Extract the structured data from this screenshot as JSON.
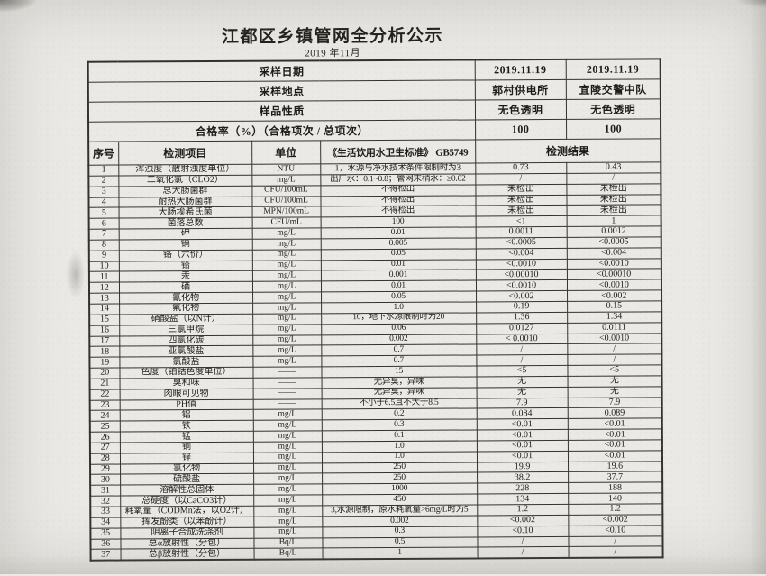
{
  "page": {
    "title": "江都区乡镇管网全分析公示",
    "subtitle": "2019 年11月"
  },
  "info_rows": [
    {
      "label": "采样日期",
      "col1": "2019.11.19",
      "col2": "2019.11.19"
    },
    {
      "label": "采样地点",
      "col1": "郭村供电所",
      "col2": "宜陵交警中队"
    },
    {
      "label": "样品性质",
      "col1": "无色透明",
      "col2": "无色透明"
    },
    {
      "label": "合格率（%）（合格项次 / 总项次）",
      "col1": "100",
      "col2": "100"
    }
  ],
  "table": {
    "headers": {
      "no": "序号",
      "item": "检测项目",
      "unit": "单位",
      "standard": "《生活饮用水卫生标准》 GB5749",
      "result": "检测结果"
    },
    "rows": [
      {
        "no": "1",
        "item": "浑浊度（散射浊度单位）",
        "unit": "NTU",
        "standard": "1，水源与净水技术条件限制时为3",
        "r1": "0.73",
        "r2": "0.43"
      },
      {
        "no": "2",
        "item": "二氧化氯（CLO2）",
        "unit": "mg/L",
        "standard": "出厂水：0.1~0.8；管网末稍水：≥0.02",
        "r1": "/",
        "r2": "/"
      },
      {
        "no": "3",
        "item": "总大肠菌群",
        "unit": "CFU/100mL",
        "standard": "不得检出",
        "r1": "未检出",
        "r2": "未检出"
      },
      {
        "no": "4",
        "item": "耐热大肠菌群",
        "unit": "CFU/100mL",
        "standard": "不得检出",
        "r1": "未检出",
        "r2": "未检出"
      },
      {
        "no": "5",
        "item": "大肠埃希氏菌",
        "unit": "MPN/100mL",
        "standard": "不得检出",
        "r1": "未检出",
        "r2": "未检出"
      },
      {
        "no": "6",
        "item": "菌落总数",
        "unit": "CFU/mL",
        "standard": "100",
        "r1": "<1",
        "r2": "1"
      },
      {
        "no": "7",
        "item": "砷",
        "unit": "mg/L",
        "standard": "0.01",
        "r1": "0.0011",
        "r2": "0.0012"
      },
      {
        "no": "8",
        "item": "镉",
        "unit": "mg/L",
        "standard": "0.005",
        "r1": "<0.0005",
        "r2": "<0.0005"
      },
      {
        "no": "9",
        "item": "铬（六价）",
        "unit": "mg/L",
        "standard": "0.05",
        "r1": "<0.004",
        "r2": "<0.004"
      },
      {
        "no": "10",
        "item": "铅",
        "unit": "mg/L",
        "standard": "0.01",
        "r1": "<0.0010",
        "r2": "<0.0010"
      },
      {
        "no": "11",
        "item": "汞",
        "unit": "mg/L",
        "standard": "0.001",
        "r1": "<0.00010",
        "r2": "<0.00010"
      },
      {
        "no": "12",
        "item": "硒",
        "unit": "mg/L",
        "standard": "0.01",
        "r1": "<0.0010",
        "r2": "<0.0010"
      },
      {
        "no": "13",
        "item": "氰化物",
        "unit": "mg/L",
        "standard": "0.05",
        "r1": "<0.002",
        "r2": "<0.002"
      },
      {
        "no": "14",
        "item": "氟化物",
        "unit": "mg/L",
        "standard": "1.0",
        "r1": "0.19",
        "r2": "0.15"
      },
      {
        "no": "15",
        "item": "硝酸盐（以N计）",
        "unit": "mg/L",
        "standard": "10，地下水源限制时为20",
        "r1": "1.36",
        "r2": "1.34"
      },
      {
        "no": "16",
        "item": "三氯甲烷",
        "unit": "mg/L",
        "standard": "0.06",
        "r1": "0.0127",
        "r2": "0.0111"
      },
      {
        "no": "17",
        "item": "四氯化碳",
        "unit": "mg/L",
        "standard": "0.002",
        "r1": "< 0.0010",
        "r2": "<0.0010"
      },
      {
        "no": "18",
        "item": "亚氯酸盐",
        "unit": "mg/L",
        "standard": "0.7",
        "r1": "/",
        "r2": "/"
      },
      {
        "no": "19",
        "item": "氯酸盐",
        "unit": "mg/L",
        "standard": "0.7",
        "r1": "/",
        "r2": "/"
      },
      {
        "no": "20",
        "item": "色度（铂钴色度单位）",
        "unit": "——",
        "standard": "15",
        "r1": "<5",
        "r2": "<5"
      },
      {
        "no": "21",
        "item": "臭和味",
        "unit": "——",
        "standard": "无异臭，异味",
        "r1": "无",
        "r2": "无"
      },
      {
        "no": "22",
        "item": "肉眼可见物",
        "unit": "——",
        "standard": "无异臭，异味",
        "r1": "无",
        "r2": "无"
      },
      {
        "no": "23",
        "item": "PH值",
        "unit": "——",
        "standard": "不小于6.5且不大于8.5",
        "r1": "7.9",
        "r2": "7.9"
      },
      {
        "no": "24",
        "item": "铝",
        "unit": "mg/L",
        "standard": "0.2",
        "r1": "0.084",
        "r2": "0.089"
      },
      {
        "no": "25",
        "item": "铁",
        "unit": "mg/L",
        "standard": "0.3",
        "r1": "<0.01",
        "r2": "<0.01"
      },
      {
        "no": "26",
        "item": "锰",
        "unit": "mg/L",
        "standard": "0.1",
        "r1": "<0.01",
        "r2": "<0.01"
      },
      {
        "no": "27",
        "item": "铜",
        "unit": "mg/L",
        "standard": "1.0",
        "r1": "<0.01",
        "r2": "<0.01"
      },
      {
        "no": "28",
        "item": "锌",
        "unit": "mg/L",
        "standard": "1.0",
        "r1": "<0.01",
        "r2": "<0.01"
      },
      {
        "no": "29",
        "item": "氯化物",
        "unit": "mg/L",
        "standard": "250",
        "r1": "19.9",
        "r2": "19.6"
      },
      {
        "no": "30",
        "item": "硫酸盐",
        "unit": "mg/L",
        "standard": "250",
        "r1": "38.2",
        "r2": "37.7"
      },
      {
        "no": "31",
        "item": "溶解性总固体",
        "unit": "mg/L",
        "standard": "1000",
        "r1": "228",
        "r2": "188"
      },
      {
        "no": "32",
        "item": "总硬度（以CaCO3计）",
        "unit": "mg/L",
        "standard": "450",
        "r1": "134",
        "r2": "140"
      },
      {
        "no": "33",
        "item": "耗氧量（CODMn法，以O2计）",
        "unit": "mg/L",
        "standard": "3,水源限制，原水耗氧量>6mg/L时为5",
        "r1": "1.2",
        "r2": "1.2"
      },
      {
        "no": "34",
        "item": "挥发酚类（以苯酚计）",
        "unit": "mg/L",
        "standard": "0.002",
        "r1": "<0.002",
        "r2": "<0.002"
      },
      {
        "no": "35",
        "item": "阴离子合成洗涤剂",
        "unit": "mg/L",
        "standard": "0.3",
        "r1": "<0.10",
        "r2": "<0.10"
      },
      {
        "no": "36",
        "item": "总α放射性（分包）",
        "unit": "Bq/L",
        "standard": "0.5",
        "r1": "/",
        "r2": "/"
      },
      {
        "no": "37",
        "item": "总β放射性（分包）",
        "unit": "Bq/L",
        "standard": "1",
        "r1": "/",
        "r2": "/"
      }
    ]
  }
}
